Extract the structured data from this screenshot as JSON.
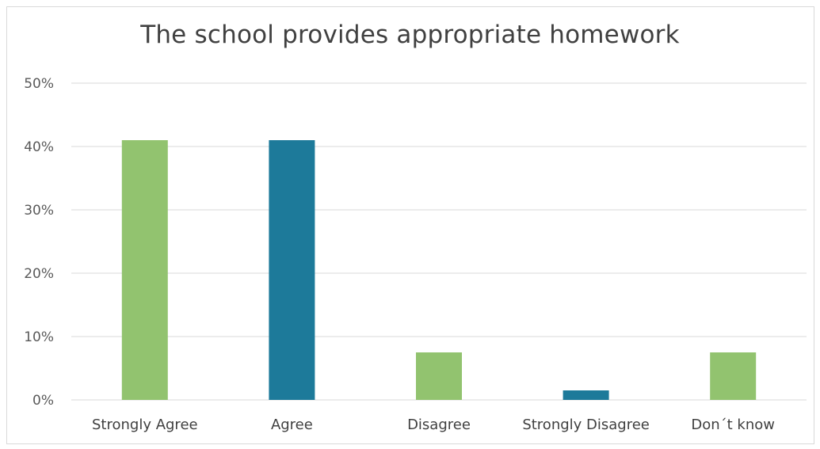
{
  "chart_data": {
    "type": "bar",
    "title": "The school provides appropriate homework",
    "xlabel": "",
    "ylabel": "",
    "categories": [
      "Strongly Agree",
      "Agree",
      "Disagree",
      "Strongly Disagree",
      "Don´t know"
    ],
    "values": [
      41,
      41,
      7.5,
      1.5,
      7.5
    ],
    "value_unit": "%",
    "ylim": [
      0,
      50
    ],
    "yticks": [
      0,
      10,
      20,
      30,
      40,
      50
    ],
    "ytick_labels": [
      "0%",
      "10%",
      "20%",
      "30%",
      "40%",
      "50%"
    ],
    "bar_colors": [
      "#92c36f",
      "#1d7a9a",
      "#92c36f",
      "#1d7a9a",
      "#92c36f"
    ],
    "grid": true,
    "legend": "none"
  },
  "colors": {
    "grid": "#d9d9d9",
    "title": "#404040",
    "tick_text": "#595959"
  }
}
